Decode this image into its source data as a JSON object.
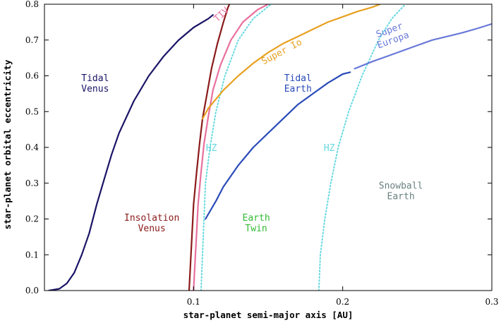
{
  "chart_data": {
    "type": "line",
    "xlabel": "star-planet semi-major axis [AU]",
    "ylabel": "star-planet orbital eccentricity",
    "xlim": [
      0.0,
      0.3
    ],
    "ylim": [
      0.0,
      0.8
    ],
    "x_ticks": [
      {
        "value": 0.1,
        "label": "0.1"
      },
      {
        "value": 0.2,
        "label": "0.2"
      },
      {
        "value": 0.3,
        "label": "0.3"
      }
    ],
    "y_ticks": [
      {
        "value": 0.0,
        "label": "0.0"
      },
      {
        "value": 0.1,
        "label": "0.1"
      },
      {
        "value": 0.2,
        "label": "0.2"
      },
      {
        "value": 0.3,
        "label": "0.3"
      },
      {
        "value": 0.4,
        "label": "0.4"
      },
      {
        "value": 0.5,
        "label": "0.5"
      },
      {
        "value": 0.6,
        "label": "0.6"
      },
      {
        "value": 0.7,
        "label": "0.7"
      },
      {
        "value": 0.8,
        "label": "0.8"
      }
    ],
    "grid": false,
    "series": [
      {
        "color": "#1a1466",
        "style": "solid",
        "points": [
          [
            0.003,
            0.0
          ],
          [
            0.01,
            0.005
          ],
          [
            0.015,
            0.02
          ],
          [
            0.02,
            0.05
          ],
          [
            0.025,
            0.1
          ],
          [
            0.03,
            0.16
          ],
          [
            0.035,
            0.24
          ],
          [
            0.04,
            0.31
          ],
          [
            0.045,
            0.38
          ],
          [
            0.05,
            0.44
          ],
          [
            0.06,
            0.53
          ],
          [
            0.07,
            0.6
          ],
          [
            0.08,
            0.655
          ],
          [
            0.09,
            0.7
          ],
          [
            0.1,
            0.735
          ],
          [
            0.11,
            0.76
          ],
          [
            0.113,
            0.77
          ]
        ]
      },
      {
        "color": "#8b1a1a",
        "style": "solid",
        "points": [
          [
            0.097,
            0.0
          ],
          [
            0.098,
            0.08
          ],
          [
            0.099,
            0.16
          ],
          [
            0.1,
            0.24
          ],
          [
            0.102,
            0.33
          ],
          [
            0.104,
            0.41
          ],
          [
            0.106,
            0.48
          ],
          [
            0.109,
            0.55
          ],
          [
            0.112,
            0.62
          ],
          [
            0.116,
            0.69
          ],
          [
            0.12,
            0.75
          ],
          [
            0.123,
            0.79
          ],
          [
            0.124,
            0.8
          ]
        ]
      },
      {
        "color": "#e8709e",
        "style": "solid",
        "points": [
          [
            0.1,
            0.0
          ],
          [
            0.101,
            0.08
          ],
          [
            0.102,
            0.16
          ],
          [
            0.103,
            0.24
          ],
          [
            0.105,
            0.33
          ],
          [
            0.107,
            0.41
          ],
          [
            0.11,
            0.49
          ],
          [
            0.113,
            0.56
          ],
          [
            0.118,
            0.63
          ],
          [
            0.125,
            0.7
          ],
          [
            0.133,
            0.75
          ],
          [
            0.143,
            0.785
          ],
          [
            0.15,
            0.8
          ]
        ]
      },
      {
        "color": "#66d9e0",
        "style": "dotted",
        "points": [
          [
            0.105,
            0.0
          ],
          [
            0.106,
            0.1
          ],
          [
            0.107,
            0.2
          ],
          [
            0.108,
            0.3
          ],
          [
            0.111,
            0.4
          ],
          [
            0.115,
            0.5
          ],
          [
            0.121,
            0.6
          ],
          [
            0.13,
            0.7
          ],
          [
            0.14,
            0.76
          ],
          [
            0.152,
            0.8
          ]
        ]
      },
      {
        "color": "#66d9e0",
        "style": "dotted",
        "points": [
          [
            0.184,
            0.0
          ],
          [
            0.185,
            0.1
          ],
          [
            0.188,
            0.2
          ],
          [
            0.192,
            0.3
          ],
          [
            0.197,
            0.4
          ],
          [
            0.204,
            0.5
          ],
          [
            0.213,
            0.6
          ],
          [
            0.224,
            0.7
          ],
          [
            0.233,
            0.76
          ],
          [
            0.242,
            0.8
          ]
        ]
      },
      {
        "color": "#e8a020",
        "style": "solid",
        "points": [
          [
            0.106,
            0.48
          ],
          [
            0.11,
            0.51
          ],
          [
            0.12,
            0.56
          ],
          [
            0.13,
            0.6
          ],
          [
            0.14,
            0.635
          ],
          [
            0.15,
            0.665
          ],
          [
            0.16,
            0.69
          ],
          [
            0.17,
            0.71
          ],
          [
            0.18,
            0.73
          ],
          [
            0.19,
            0.75
          ],
          [
            0.2,
            0.765
          ],
          [
            0.21,
            0.78
          ],
          [
            0.22,
            0.792
          ],
          [
            0.225,
            0.8
          ]
        ]
      },
      {
        "color": "#2a4bb8",
        "style": "solid",
        "points": [
          [
            0.108,
            0.2
          ],
          [
            0.115,
            0.25
          ],
          [
            0.12,
            0.29
          ],
          [
            0.13,
            0.35
          ],
          [
            0.14,
            0.4
          ],
          [
            0.15,
            0.44
          ],
          [
            0.16,
            0.48
          ],
          [
            0.17,
            0.52
          ],
          [
            0.18,
            0.55
          ],
          [
            0.19,
            0.58
          ],
          [
            0.2,
            0.605
          ],
          [
            0.205,
            0.61
          ]
        ]
      },
      {
        "color": "#6878d8",
        "style": "solid",
        "points": [
          [
            0.208,
            0.62
          ],
          [
            0.22,
            0.64
          ],
          [
            0.23,
            0.655
          ],
          [
            0.24,
            0.67
          ],
          [
            0.25,
            0.685
          ],
          [
            0.26,
            0.7
          ],
          [
            0.27,
            0.71
          ],
          [
            0.28,
            0.72
          ],
          [
            0.29,
            0.732
          ],
          [
            0.3,
            0.745
          ]
        ]
      }
    ],
    "annotations": [
      {
        "lines": [
          "Tidal",
          "Venus"
        ],
        "x": 0.034,
        "y": 0.585,
        "color": "#1a1466",
        "rotate": 0
      },
      {
        "lines": [
          "Insolation",
          "Venus"
        ],
        "x": 0.072,
        "y": 0.195,
        "color": "#8b1a1a",
        "rotate": 0
      },
      {
        "lines": [
          "TIV"
        ],
        "x": 0.12,
        "y": 0.765,
        "color": "#e8709e",
        "rotate": -42
      },
      {
        "lines": [
          "HZ"
        ],
        "x": 0.112,
        "y": 0.39,
        "color": "#66d9e0",
        "rotate": 0
      },
      {
        "lines": [
          "HZ"
        ],
        "x": 0.191,
        "y": 0.39,
        "color": "#66d9e0",
        "rotate": 0
      },
      {
        "lines": [
          "Super Io"
        ],
        "x": 0.16,
        "y": 0.66,
        "color": "#e8a020",
        "rotate": -28
      },
      {
        "lines": [
          "Tidal",
          "Earth"
        ],
        "x": 0.17,
        "y": 0.585,
        "color": "#2a4bb8",
        "rotate": 0
      },
      {
        "lines": [
          "Super",
          "Europa"
        ],
        "x": 0.232,
        "y": 0.72,
        "color": "#6878d8",
        "rotate": -20
      },
      {
        "lines": [
          "Earth",
          "Twin"
        ],
        "x": 0.142,
        "y": 0.195,
        "color": "#33bb33",
        "rotate": 0
      },
      {
        "lines": [
          "Snowball",
          "Earth"
        ],
        "x": 0.239,
        "y": 0.285,
        "color": "#6a8080",
        "rotate": 0
      }
    ]
  }
}
